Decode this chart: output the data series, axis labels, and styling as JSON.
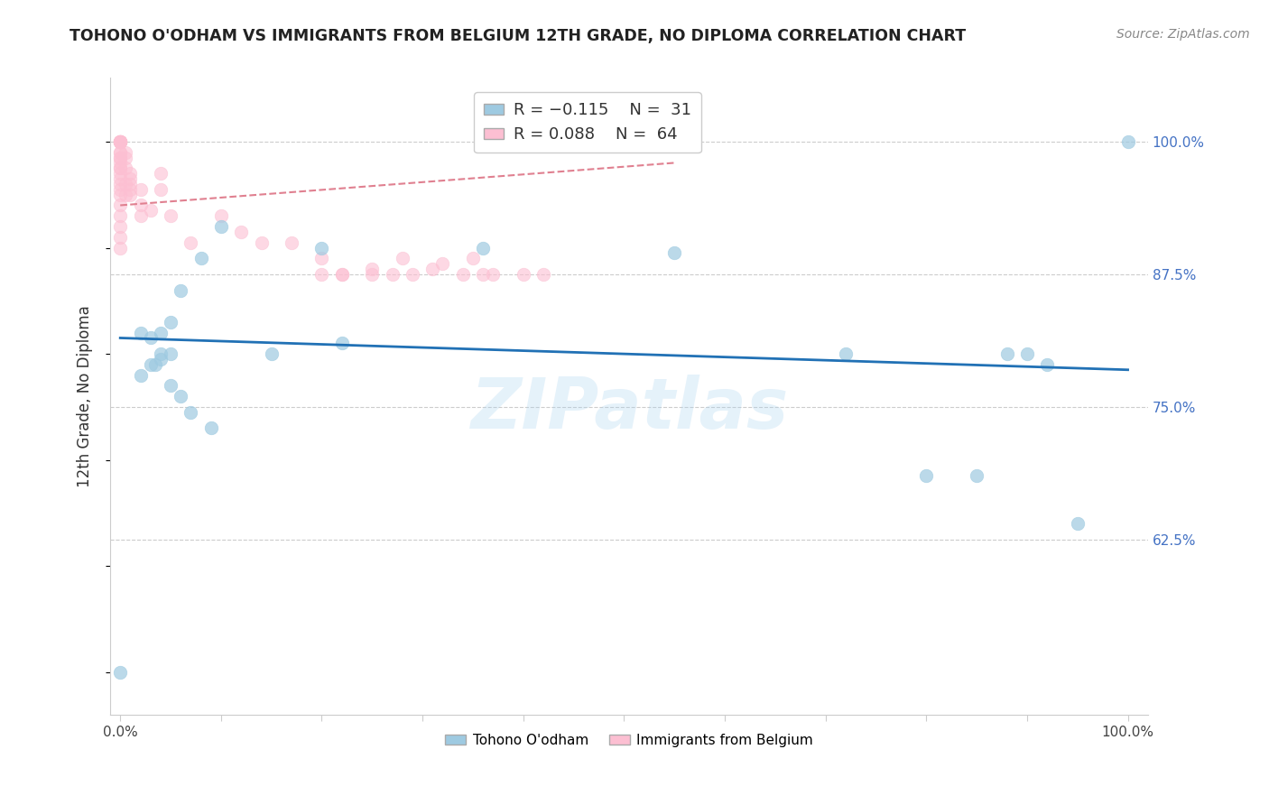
{
  "title": "TOHONO O'ODHAM VS IMMIGRANTS FROM BELGIUM 12TH GRADE, NO DIPLOMA CORRELATION CHART",
  "source": "Source: ZipAtlas.com",
  "ylabel": "12th Grade, No Diploma",
  "ytick_labels": [
    "100.0%",
    "87.5%",
    "75.0%",
    "62.5%"
  ],
  "ytick_values": [
    1.0,
    0.875,
    0.75,
    0.625
  ],
  "xlim": [
    -0.01,
    1.02
  ],
  "ylim": [
    0.46,
    1.06
  ],
  "color_blue": "#9ecae1",
  "color_pink": "#fcbfd2",
  "color_trendline_blue": "#2171b5",
  "color_trendline_pink": "#e08090",
  "watermark_text": "ZIPatlas",
  "blue_scatter_x": [
    0.0,
    0.02,
    0.03,
    0.035,
    0.04,
    0.04,
    0.05,
    0.05,
    0.06,
    0.08,
    0.1,
    0.15,
    0.2,
    0.22,
    0.36,
    0.55,
    0.72,
    0.8,
    0.85,
    0.88,
    0.9,
    0.92,
    0.95,
    1.0,
    0.02,
    0.03,
    0.04,
    0.05,
    0.06,
    0.07,
    0.09
  ],
  "blue_scatter_y": [
    0.5,
    0.82,
    0.815,
    0.79,
    0.8,
    0.82,
    0.83,
    0.77,
    0.86,
    0.89,
    0.92,
    0.8,
    0.9,
    0.81,
    0.9,
    0.895,
    0.8,
    0.685,
    0.685,
    0.8,
    0.8,
    0.79,
    0.64,
    1.0,
    0.78,
    0.79,
    0.795,
    0.8,
    0.76,
    0.745,
    0.73
  ],
  "pink_scatter_x": [
    0.0,
    0.0,
    0.0,
    0.0,
    0.0,
    0.0,
    0.0,
    0.0,
    0.0,
    0.0,
    0.0,
    0.0,
    0.0,
    0.0,
    0.0,
    0.0,
    0.0,
    0.0,
    0.0,
    0.0,
    0.0,
    0.0,
    0.0,
    0.0,
    0.0,
    0.005,
    0.005,
    0.005,
    0.005,
    0.005,
    0.01,
    0.01,
    0.01,
    0.01,
    0.01,
    0.02,
    0.02,
    0.02,
    0.03,
    0.04,
    0.04,
    0.05,
    0.07,
    0.1,
    0.12,
    0.14,
    0.17,
    0.2,
    0.22,
    0.25,
    0.28,
    0.32,
    0.35,
    0.37,
    0.2,
    0.22,
    0.25,
    0.27,
    0.29,
    0.31,
    0.34,
    0.36,
    0.4,
    0.42
  ],
  "pink_scatter_y": [
    1.0,
    1.0,
    1.0,
    1.0,
    1.0,
    1.0,
    1.0,
    1.0,
    0.99,
    0.99,
    0.985,
    0.985,
    0.98,
    0.975,
    0.975,
    0.97,
    0.965,
    0.96,
    0.955,
    0.95,
    0.94,
    0.93,
    0.92,
    0.91,
    0.9,
    0.99,
    0.985,
    0.975,
    0.96,
    0.95,
    0.97,
    0.965,
    0.96,
    0.955,
    0.95,
    0.955,
    0.94,
    0.93,
    0.935,
    0.955,
    0.97,
    0.93,
    0.905,
    0.93,
    0.915,
    0.905,
    0.905,
    0.89,
    0.875,
    0.88,
    0.89,
    0.885,
    0.89,
    0.875,
    0.875,
    0.875,
    0.875,
    0.875,
    0.875,
    0.88,
    0.875,
    0.875,
    0.875,
    0.875
  ]
}
